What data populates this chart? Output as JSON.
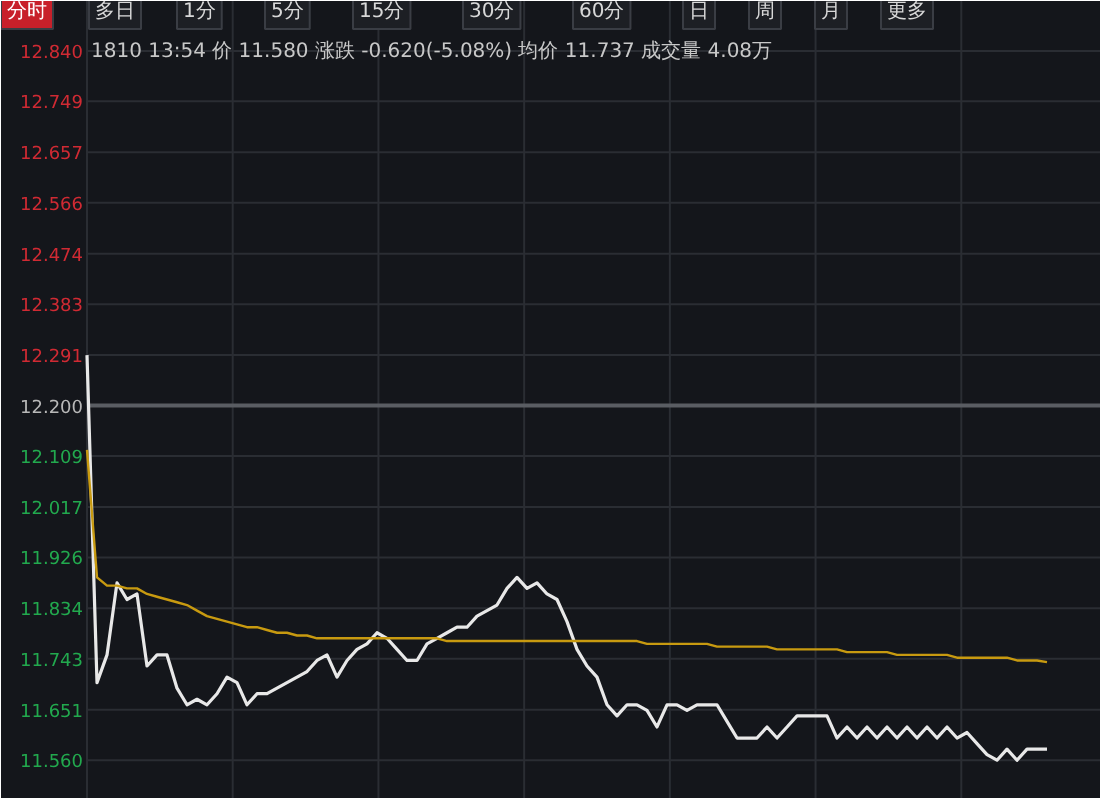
{
  "chart_data": {
    "type": "line",
    "subtitle": "1810 13:54 价 11.580 涨跌 -0.620(-5.08%) 均价 11.737 成交量 4.08万",
    "annotations": [
      "分时",
      "多日",
      "1分",
      "5分",
      "15分",
      "30分",
      "60分",
      "日",
      "周",
      "月",
      "更多"
    ],
    "categories": [
      null,
      null,
      null,
      null,
      null,
      null,
      null,
      null,
      null,
      null,
      null,
      null,
      null,
      null,
      null,
      null,
      null,
      null,
      null,
      null,
      null,
      null,
      null,
      null,
      null,
      null,
      null,
      null,
      null,
      null,
      null,
      null,
      null,
      null,
      null,
      null,
      null,
      null,
      null,
      null,
      null,
      null,
      null,
      null,
      null,
      null,
      null,
      null,
      null,
      null,
      null,
      null,
      null,
      null,
      null,
      null,
      null,
      null,
      null,
      null,
      null,
      null,
      null,
      null,
      null,
      null,
      null,
      null,
      null,
      null,
      null,
      null,
      null,
      null,
      null,
      null,
      null,
      null,
      null,
      null,
      null,
      null,
      null,
      null,
      null,
      null,
      null,
      null,
      null,
      null,
      null,
      null,
      null,
      null,
      null,
      null,
      null,
      null,
      null,
      null,
      null,
      null
    ],
    "series": [
      {
        "color": "#e8e8e8",
        "values": [
          12.291,
          11.7,
          11.75,
          11.88,
          11.85,
          11.86,
          11.73,
          11.75,
          11.75,
          11.69,
          11.66,
          11.67,
          11.66,
          11.68,
          11.71,
          11.7,
          11.66,
          11.68,
          11.68,
          11.69,
          11.7,
          11.71,
          11.72,
          11.74,
          11.75,
          11.71,
          11.74,
          11.76,
          11.77,
          11.79,
          11.78,
          11.76,
          11.74,
          11.74,
          11.77,
          11.78,
          11.79,
          11.8,
          11.8,
          11.82,
          11.83,
          11.84,
          11.87,
          11.89,
          11.87,
          11.88,
          11.86,
          11.85,
          11.81,
          11.76,
          11.73,
          11.71,
          11.66,
          11.64,
          11.66,
          11.66,
          11.65,
          11.62,
          11.66,
          11.66,
          11.65,
          11.66,
          11.66,
          11.66,
          11.63,
          11.6,
          11.6,
          11.6,
          11.62,
          11.6,
          11.62,
          11.64,
          11.64,
          11.64,
          11.64,
          11.6,
          11.62,
          11.6,
          11.62,
          11.6,
          11.62,
          11.6,
          11.62,
          11.6,
          11.62,
          11.6,
          11.62,
          11.6,
          11.61,
          11.59,
          11.57,
          11.56,
          11.58,
          11.56,
          11.58,
          11.58,
          11.58,
          null,
          null,
          null,
          null,
          null
        ]
      },
      {
        "color": "#c89a10",
        "values": [
          12.12,
          11.89,
          11.875,
          11.875,
          11.87,
          11.87,
          11.86,
          11.855,
          11.85,
          11.845,
          11.84,
          11.83,
          11.82,
          11.815,
          11.81,
          11.805,
          11.8,
          11.8,
          11.795,
          11.79,
          11.79,
          11.785,
          11.785,
          11.78,
          11.78,
          11.78,
          11.78,
          11.78,
          11.78,
          11.78,
          11.78,
          11.78,
          11.78,
          11.78,
          11.78,
          11.78,
          11.775,
          11.775,
          11.775,
          11.775,
          11.775,
          11.775,
          11.775,
          11.775,
          11.775,
          11.775,
          11.775,
          11.775,
          11.775,
          11.775,
          11.775,
          11.775,
          11.775,
          11.775,
          11.775,
          11.775,
          11.77,
          11.77,
          11.77,
          11.77,
          11.77,
          11.77,
          11.77,
          11.765,
          11.765,
          11.765,
          11.765,
          11.765,
          11.765,
          11.76,
          11.76,
          11.76,
          11.76,
          11.76,
          11.76,
          11.76,
          11.755,
          11.755,
          11.755,
          11.755,
          11.755,
          11.75,
          11.75,
          11.75,
          11.75,
          11.75,
          11.75,
          11.745,
          11.745,
          11.745,
          11.745,
          11.745,
          11.745,
          11.74,
          11.74,
          11.74,
          11.737,
          null,
          null,
          null,
          null,
          null
        ]
      }
    ],
    "ylim": [
      11.49,
      12.93
    ],
    "yticks": [
      {
        "value": 12.84,
        "label": "12.840"
      },
      12.749,
      12.657,
      12.566,
      12.474,
      12.383,
      12.291,
      {
        "value": 12.2,
        "label": "12.200"
      },
      12.109,
      12.017,
      11.926,
      11.834,
      11.743,
      11.651,
      {
        "value": 11.56,
        "label": "11.560"
      }
    ],
    "ref_lines": [
      {
        "axis": "y",
        "value": 12.2,
        "color": "#5a5d63"
      }
    ],
    "grid": true,
    "marker": "none",
    "line_style": "solid",
    "tick_labels": "y"
  }
}
